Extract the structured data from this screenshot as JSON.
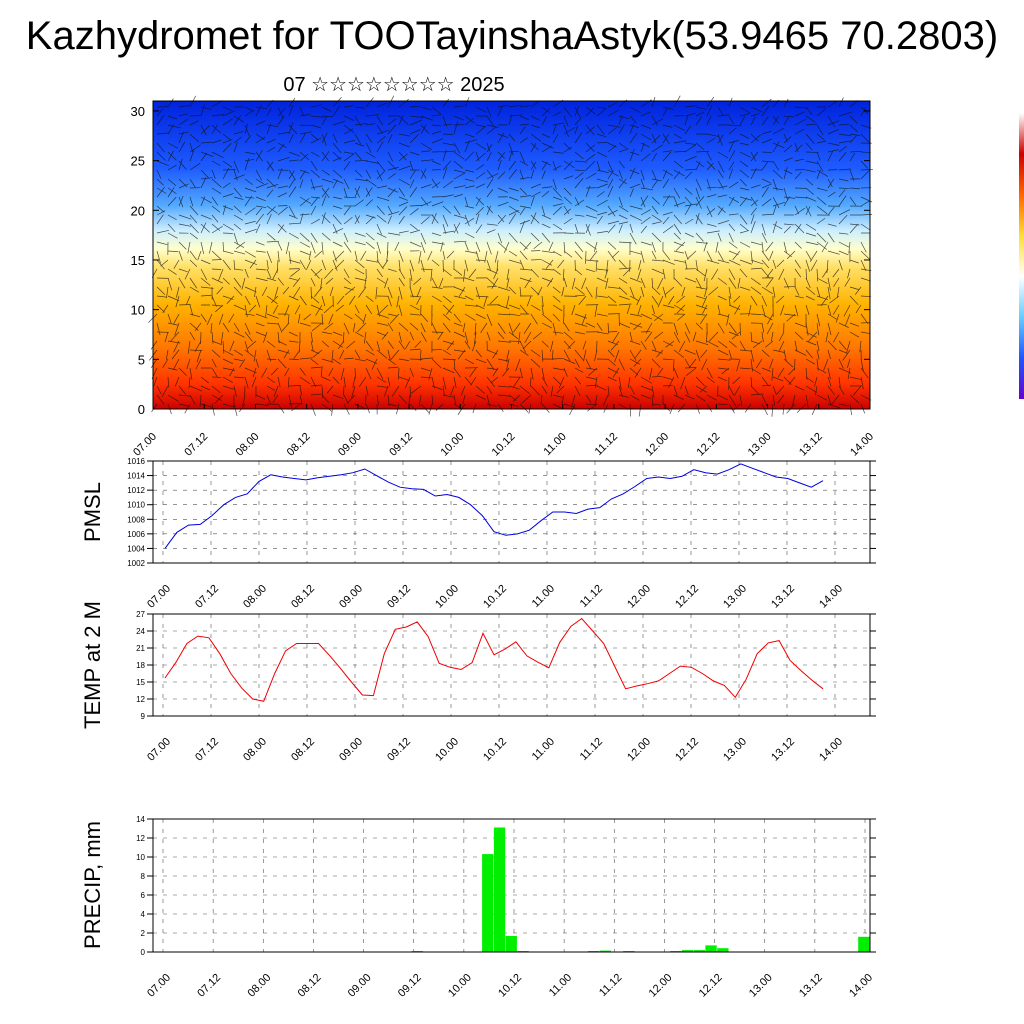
{
  "header": {
    "title": "Kazhydromet for TOOTayinshaAstyk(53.9465 70.2803)",
    "subtitle": "07 ☆☆☆☆☆☆☆☆ 2025"
  },
  "chart_data": [
    {
      "type": "heatmap",
      "title": "",
      "x_tick_labels": [
        "07.00",
        "07.12",
        "08.00",
        "08.12",
        "09.00",
        "09.12",
        "10.00",
        "10.12",
        "11.00",
        "11.12",
        "12.00",
        "12.12",
        "13.00",
        "13.12",
        "14.00"
      ],
      "y_ticks": [
        0,
        5,
        10,
        15,
        20,
        25,
        30
      ],
      "ylim": [
        0,
        31
      ],
      "description_levels": "vertical cross-section with wind barbs",
      "colors": [
        "#cc0000",
        "#ff3300",
        "#ff7700",
        "#ffb300",
        "#ffe066",
        "#ffffcc",
        "#cceeff",
        "#55aaff",
        "#1e5cff",
        "#0022dd"
      ]
    },
    {
      "type": "line",
      "ylabel": "PMSL",
      "color": "#0000dd",
      "ylim": [
        1002,
        1016
      ],
      "y_ticks": [
        1002,
        1004,
        1006,
        1008,
        1010,
        1012,
        1014,
        1016
      ],
      "x_tick_labels": [
        "07.00",
        "07.12",
        "08.00",
        "08.12",
        "09.00",
        "09.12",
        "10.00",
        "10.12",
        "11.00",
        "11.12",
        "12.00",
        "12.12",
        "13.00",
        "13.12",
        "14.00"
      ],
      "values": [
        1004.0,
        1006.2,
        1007.2,
        1007.3,
        1008.5,
        1010.0,
        1011.0,
        1011.5,
        1013.2,
        1014.1,
        1013.8,
        1013.6,
        1013.4,
        1013.7,
        1013.9,
        1014.1,
        1014.4,
        1014.9,
        1014.0,
        1013.1,
        1012.4,
        1012.2,
        1012.1,
        1011.2,
        1011.4,
        1011.0,
        1010.0,
        1008.5,
        1006.3,
        1005.8,
        1006.0,
        1006.5,
        1007.8,
        1009.0,
        1009.0,
        1008.8,
        1009.4,
        1009.6,
        1010.8,
        1011.5,
        1012.5,
        1013.6,
        1013.8,
        1013.6,
        1013.9,
        1014.8,
        1014.4,
        1014.2,
        1014.8,
        1015.6,
        1015.0,
        1014.4,
        1013.8,
        1013.6,
        1013.0,
        1012.4,
        1013.3
      ]
    },
    {
      "type": "line",
      "ylabel": "TEMP at 2 M",
      "color": "#ee0000",
      "ylim": [
        9,
        27
      ],
      "y_ticks": [
        9,
        12,
        15,
        18,
        21,
        24,
        27
      ],
      "x_tick_labels": [
        "07.00",
        "07.12",
        "08.00",
        "08.12",
        "09.00",
        "09.12",
        "10.00",
        "10.12",
        "11.00",
        "11.12",
        "12.00",
        "12.12",
        "13.00",
        "13.12",
        "14.00"
      ],
      "values": [
        15.7,
        18.5,
        21.8,
        23.1,
        22.8,
        20.0,
        16.5,
        13.9,
        12.0,
        11.6,
        16.5,
        20.5,
        21.8,
        21.8,
        21.8,
        19.7,
        17.4,
        15.0,
        12.7,
        12.6,
        20.0,
        24.3,
        24.7,
        25.6,
        23.0,
        18.3,
        17.6,
        17.2,
        18.4,
        23.6,
        19.8,
        20.8,
        22.1,
        19.6,
        18.5,
        17.5,
        22.0,
        24.8,
        26.2,
        24.0,
        21.8,
        17.8,
        13.8,
        14.3,
        14.7,
        15.2,
        16.5,
        17.8,
        17.6,
        16.5,
        15.2,
        14.4,
        12.3,
        15.5,
        20.0,
        21.9,
        22.3,
        18.8,
        17.0,
        15.3,
        13.8
      ]
    },
    {
      "type": "bar",
      "ylabel": "PRECIP, mm",
      "color": "#00ee00",
      "ylim": [
        0,
        14
      ],
      "y_ticks": [
        0,
        2,
        4,
        6,
        8,
        10,
        12,
        14
      ],
      "x_tick_labels": [
        "07.00",
        "07.12",
        "08.00",
        "08.12",
        "09.00",
        "09.12",
        "10.00",
        "10.12",
        "11.00",
        "11.12",
        "12.00",
        "12.12",
        "13.00",
        "13.12",
        "14.00"
      ],
      "values": [
        0,
        0,
        0,
        0,
        0,
        0,
        0,
        0,
        0,
        0,
        0,
        0,
        0,
        0,
        0,
        0,
        0,
        0,
        0,
        0,
        0,
        0,
        0.1,
        0,
        0,
        0,
        0.05,
        0,
        10.3,
        13.1,
        1.7,
        0.1,
        0,
        0,
        0,
        0,
        0,
        0.1,
        0.15,
        0,
        0.1,
        0,
        0,
        0,
        0.1,
        0.2,
        0.2,
        0.7,
        0.4,
        0,
        0,
        0,
        0,
        0,
        0,
        0,
        0,
        0,
        0,
        0,
        1.6
      ]
    }
  ]
}
